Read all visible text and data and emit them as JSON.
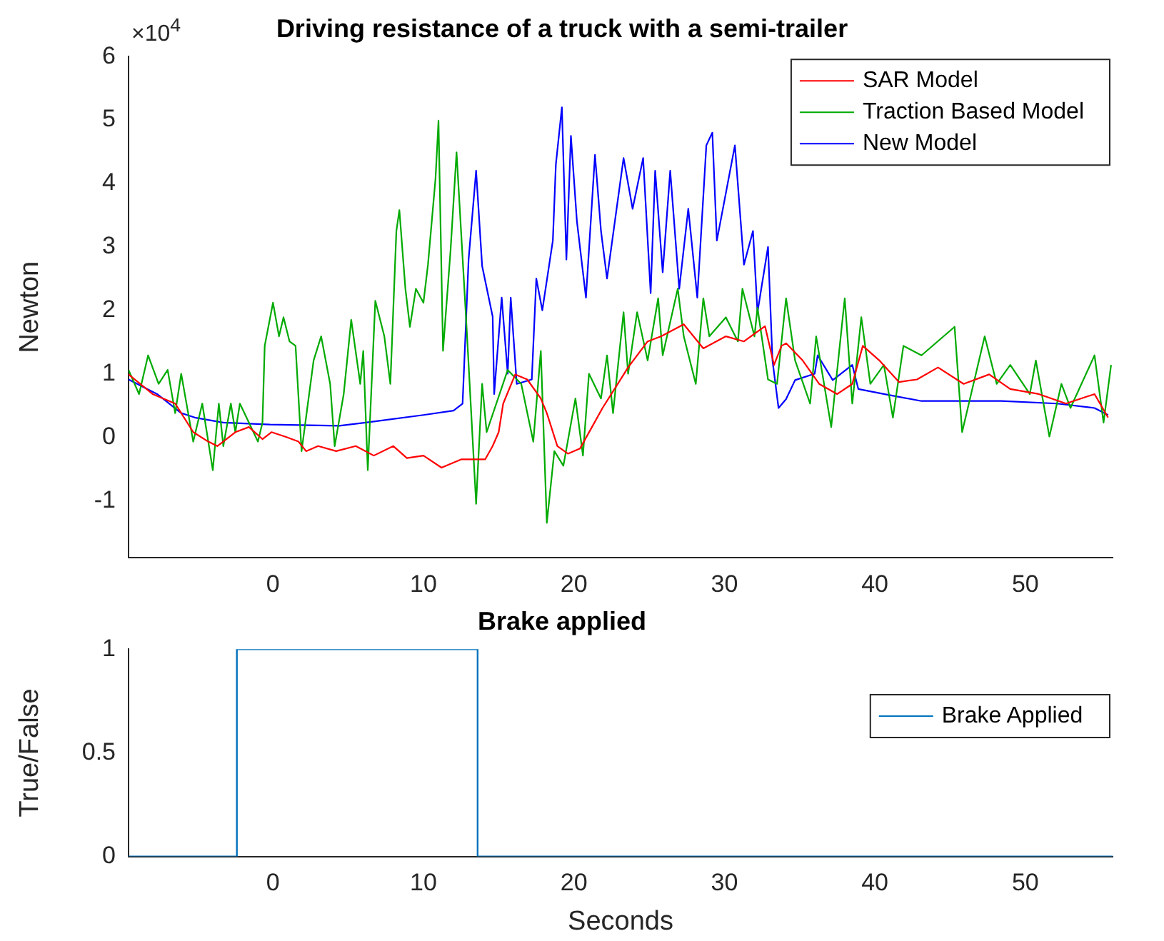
{
  "chart_data": [
    {
      "type": "line",
      "title": "Driving resistance of a truck with a semi-trailer",
      "ylabel": "Newton",
      "annotations": [
        "×10$^{4}$"
      ],
      "xlim": [
        -9.6,
        55.8
      ],
      "xticks": [
        0,
        10,
        20,
        30,
        40,
        50
      ],
      "ylim": [
        -1.9,
        6
      ],
      "yticks": [
        -1,
        0,
        1,
        2,
        3,
        4,
        5,
        6
      ],
      "legend": "top right",
      "grid": false,
      "series": [
        {
          "name": "SAR Model",
          "color": "#ff0000",
          "x": [
            -9.6,
            -8,
            -6.5,
            -5.3,
            -4.3,
            -3.7,
            -2.5,
            -1.6,
            -0.7,
            -0.1,
            0.8,
            1.7,
            2.2,
            3.0,
            4.2,
            5.5,
            6.7,
            8.0,
            8.9,
            10,
            11.2,
            12.5,
            14.1,
            14.6,
            15.0,
            15.3,
            16.1,
            16.9,
            17.8,
            18.2,
            18.9,
            19.6,
            20.4,
            21.2,
            21.9,
            22.7,
            23.6,
            24.9,
            25.8,
            27.3,
            28.6,
            30.1,
            31.3,
            32.7,
            33.3,
            33.8,
            34.1,
            35.2,
            36.3,
            37.5,
            38.5,
            39.2,
            40.3,
            41.6,
            42.8,
            44.2,
            45.9,
            47.6,
            49.0,
            50.9,
            52.7,
            54.6,
            55.5
          ],
          "values": [
            0.99,
            0.68,
            0.53,
            0.08,
            -0.07,
            -0.14,
            0.08,
            0.16,
            -0.03,
            0.08,
            0.01,
            -0.07,
            -0.22,
            -0.14,
            -0.22,
            -0.14,
            -0.29,
            -0.14,
            -0.33,
            -0.29,
            -0.48,
            -0.35,
            -0.35,
            -0.14,
            0.08,
            0.53,
            0.99,
            0.91,
            0.61,
            0.38,
            -0.14,
            -0.26,
            -0.18,
            0.16,
            0.46,
            0.76,
            1.1,
            1.51,
            1.59,
            1.78,
            1.4,
            1.59,
            1.51,
            1.75,
            1.14,
            1.44,
            1.48,
            1.21,
            0.84,
            0.68,
            0.84,
            1.44,
            1.21,
            0.87,
            0.91,
            1.1,
            0.84,
            0.99,
            0.76,
            0.68,
            0.53,
            0.68,
            0.31
          ]
        },
        {
          "name": "Traction Based Model",
          "color": "#00aa00",
          "x": [
            -9.6,
            -8.9,
            -8.3,
            -7.6,
            -7.0,
            -6.5,
            -6.1,
            -5.3,
            -4.7,
            -4.0,
            -3.6,
            -3.3,
            -2.8,
            -2.5,
            -2.2,
            -1.0,
            -0.7,
            -0.55,
            0,
            0.4,
            0.7,
            1.1,
            1.5,
            1.9,
            2.7,
            3.2,
            3.8,
            4.1,
            4.7,
            5.2,
            5.8,
            6.0,
            6.3,
            6.8,
            7.4,
            7.8,
            8.2,
            8.4,
            8.8,
            9.1,
            9.5,
            10.0,
            10.3,
            10.8,
            11.0,
            11.3,
            11.8,
            12.2,
            12.9,
            13.5,
            13.9,
            14.2,
            15.6,
            16.5,
            17.3,
            17.8,
            18.2,
            18.7,
            19.3,
            20.1,
            20.6,
            21.0,
            21.8,
            22.2,
            22.6,
            23.3,
            23.6,
            24.2,
            24.9,
            25.6,
            25.9,
            26.9,
            27.3,
            28.1,
            28.6,
            29.0,
            30.1,
            30.9,
            31.2,
            32.0,
            32.2,
            32.9,
            33.5,
            34.1,
            34.7,
            35.7,
            36.1,
            37.1,
            38.0,
            38.5,
            39.1,
            39.7,
            40.6,
            41.2,
            41.9,
            43.1,
            45.3,
            45.8,
            47.3,
            48.1,
            49.0,
            50.3,
            50.7,
            51.6,
            52.4,
            53.0,
            54.6,
            55.2,
            55.7
          ],
          "values": [
            1.06,
            0.68,
            1.29,
            0.84,
            1.06,
            0.38,
            1.0,
            -0.07,
            0.53,
            -0.52,
            0.53,
            -0.14,
            0.53,
            0.08,
            0.53,
            -0.07,
            0.23,
            1.44,
            2.12,
            1.59,
            1.89,
            1.51,
            1.44,
            -0.22,
            1.21,
            1.59,
            0.84,
            -0.14,
            0.68,
            1.85,
            0.84,
            1.36,
            -0.52,
            2.15,
            1.59,
            0.84,
            3.25,
            3.58,
            2.34,
            1.74,
            2.34,
            2.12,
            2.72,
            4.07,
            4.99,
            1.36,
            2.94,
            4.49,
            1.59,
            -1.05,
            0.84,
            0.08,
            1.06,
            0.84,
            -0.07,
            1.36,
            -1.35,
            -0.22,
            -0.45,
            0.61,
            -0.29,
            1.0,
            0.61,
            1.29,
            0.38,
            1.97,
            1.0,
            1.97,
            1.21,
            2.19,
            1.29,
            2.34,
            1.59,
            0.84,
            2.19,
            1.59,
            1.89,
            1.51,
            2.34,
            1.59,
            2.04,
            0.91,
            0.84,
            2.19,
            1.21,
            0.53,
            1.59,
            0.16,
            2.19,
            0.53,
            1.89,
            0.84,
            1.14,
            0.31,
            1.44,
            1.29,
            1.74,
            0.08,
            1.59,
            0.84,
            1.14,
            0.68,
            1.21,
            0.01,
            0.84,
            0.46,
            1.29,
            0.23,
            1.14
          ]
        },
        {
          "name": "New Model",
          "color": "#0000ff",
          "x": [
            -9.6,
            -7.7,
            -6.1,
            -5.2,
            -3.3,
            -0.2,
            4.4,
            6.8,
            10,
            12.0,
            12.6,
            13.0,
            13.5,
            13.9,
            14.6,
            14.7,
            15.2,
            15.6,
            15.8,
            16.2,
            17.2,
            17.5,
            17.9,
            18.6,
            18.8,
            19.2,
            19.5,
            19.8,
            20.2,
            20.8,
            21.4,
            21.8,
            22.2,
            23.3,
            23.9,
            24.6,
            25.1,
            25.4,
            25.9,
            26.4,
            27.0,
            27.6,
            28.2,
            28.8,
            29.2,
            29.5,
            30.7,
            31.3,
            31.9,
            32.2,
            32.9,
            33.2,
            33.6,
            34.1,
            34.7,
            36.0,
            36.2,
            37.2,
            38.5,
            38.9,
            40.6,
            43.1,
            48.4,
            52.1,
            54.6,
            55.5
          ],
          "values": [
            0.91,
            0.68,
            0.38,
            0.31,
            0.23,
            0.2,
            0.18,
            0.25,
            0.35,
            0.42,
            0.53,
            2.8,
            4.2,
            2.7,
            1.9,
            0.68,
            2.2,
            1.0,
            2.2,
            0.84,
            0.91,
            2.5,
            2.0,
            3.1,
            4.3,
            5.2,
            2.8,
            4.75,
            3.4,
            2.2,
            4.45,
            3.25,
            2.5,
            4.4,
            3.6,
            4.4,
            2.27,
            4.2,
            2.6,
            4.2,
            2.34,
            3.6,
            2.2,
            4.6,
            4.8,
            3.1,
            4.6,
            2.72,
            3.25,
            1.97,
            3.0,
            1.2,
            0.46,
            0.6,
            0.9,
            1.0,
            1.29,
            0.9,
            1.14,
            0.76,
            0.68,
            0.57,
            0.57,
            0.53,
            0.46,
            0.35
          ]
        }
      ]
    },
    {
      "type": "step",
      "title": "Brake applied",
      "xlabel": "Seconds",
      "ylabel": "True/False",
      "xlim": [
        -9.6,
        55.8
      ],
      "xticks": [
        0,
        10,
        20,
        30,
        40,
        50
      ],
      "ylim": [
        0,
        1
      ],
      "yticks": [
        0,
        0.5,
        1
      ],
      "legend": "right",
      "grid": false,
      "series": [
        {
          "name": "Brake Applied",
          "color": "#0072bd",
          "x": [
            -9.6,
            -2.4,
            13.6,
            55.8
          ],
          "values": [
            0,
            1,
            0,
            0
          ]
        }
      ]
    }
  ]
}
